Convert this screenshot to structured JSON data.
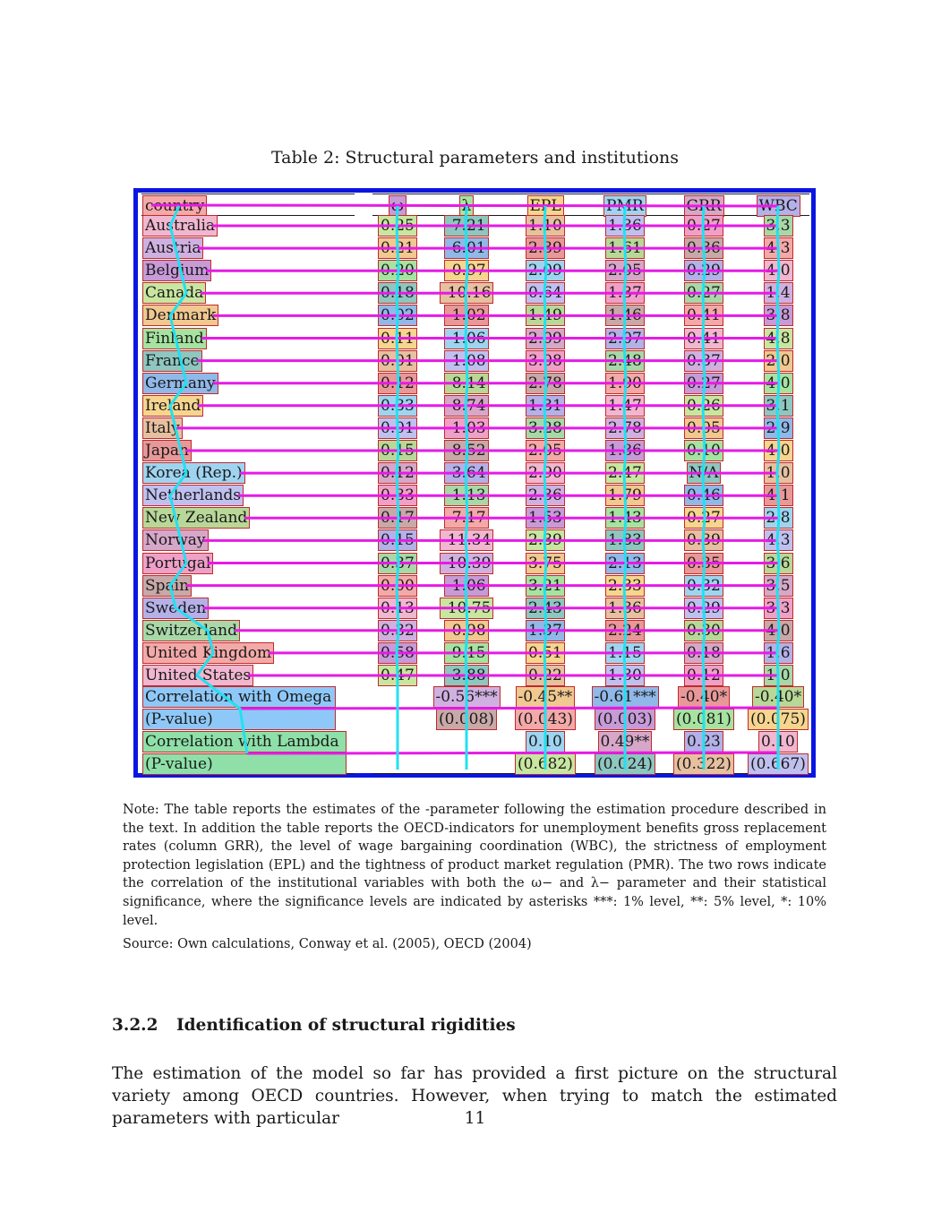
{
  "caption": "Table 2: Structural parameters and institutions",
  "table": {
    "headers": [
      "country",
      "ω",
      "λ",
      "EPL",
      "PMR",
      "GRR",
      "WBC"
    ],
    "rows": [
      {
        "country": "Australia",
        "values": [
          "0.25",
          "-7.21",
          "1.10",
          "1.36",
          "0.27",
          "3.3"
        ]
      },
      {
        "country": "Austria",
        "values": [
          "0.21",
          "-6.01",
          "2.39",
          "1.61",
          "0.36",
          "4.3"
        ]
      },
      {
        "country": "Belgium",
        "values": [
          "0.20",
          "-0.97",
          "2.09",
          "2.05",
          "0.29",
          "4.0"
        ]
      },
      {
        "country": "Canada",
        "values": [
          "0.18",
          "-10.16",
          "0.64",
          "1.37",
          "0.27",
          "1.4"
        ]
      },
      {
        "country": "Denmark",
        "values": [
          "0.02",
          "-1.02",
          "1.49",
          "1.46",
          "0.41",
          "3.8"
        ]
      },
      {
        "country": "Finland",
        "values": [
          "0.11",
          "-1.06",
          "2.09",
          "2.07",
          "0.41",
          "4.8"
        ]
      },
      {
        "country": "France",
        "values": [
          "0.01",
          "-1.08",
          "3.08",
          "2.48",
          "0.37",
          "2.0"
        ]
      },
      {
        "country": "Germany",
        "values": [
          "0.12",
          "-8.14",
          "2.78",
          "1.90",
          "0.27",
          "4.0"
        ]
      },
      {
        "country": "Ireland",
        "values": [
          "0.33",
          "-8.74",
          "1.31",
          "1.47",
          "0.26",
          "3.1"
        ]
      },
      {
        "country": "Italy",
        "values": [
          "0.01",
          "-1.03",
          "3.28",
          "2.78",
          "0.05",
          "2.9"
        ]
      },
      {
        "country": "Japan",
        "values": [
          "0.15",
          "-8.52",
          "2.05",
          "1.86",
          "0.10",
          "4.0"
        ]
      },
      {
        "country": "Korea (Rep.)",
        "values": [
          "0.12",
          "-3.64",
          "2.90",
          "2.47",
          "N/A",
          "1.0"
        ]
      },
      {
        "country": "Netherlands",
        "values": [
          "0.33",
          "-1.13",
          "2.36",
          "1.79",
          "0.46",
          "4.1"
        ]
      },
      {
        "country": "New Zealand",
        "values": [
          "0.17",
          "-7.17",
          "1.53",
          "1.43",
          "0.27",
          "2.8"
        ]
      },
      {
        "country": "Norway",
        "values": [
          "0.15",
          "-11.34",
          "2.39",
          "1.83",
          "0.39",
          "4.3"
        ]
      },
      {
        "country": "Portugal",
        "values": [
          "0.37",
          "-10.39",
          "3.75",
          "2.13",
          "0.35",
          "3.6"
        ]
      },
      {
        "country": "Spain",
        "values": [
          "0.00",
          "-1.06",
          "3.21",
          "2.33",
          "0.32",
          "3.5"
        ]
      },
      {
        "country": "Sweden",
        "values": [
          "0.13",
          "-10.75",
          "2.43",
          "1.36",
          "0.29",
          "3.3"
        ]
      },
      {
        "country": "Switzerland",
        "values": [
          "0.32",
          "-0.98",
          "1.37",
          "2.24",
          "0.30",
          "4.0"
        ]
      },
      {
        "country": "United Kingdom",
        "values": [
          "0.58",
          "-9.15",
          "0.51",
          "1.15",
          "0.18",
          "1.6"
        ]
      },
      {
        "country": "United States",
        "values": [
          "0.47",
          "-3.88",
          "0.22",
          "1.30",
          "0.12",
          "1.0"
        ]
      }
    ],
    "correlation_omega": {
      "label": "Correlation with Omega",
      "pvalue_label": "(P-value)",
      "values": [
        "-0.56***",
        "-0.45**",
        "-0.61***",
        "-0.40*",
        "-0.40*"
      ],
      "pvalues": [
        "(0.008)",
        "(0.043)",
        "(0.003)",
        "(0.081)",
        "(0.075)"
      ]
    },
    "correlation_lambda": {
      "label": "Correlation with Lambda",
      "pvalue_label": "(P-value)",
      "values": [
        "0.10",
        "0.49**",
        "0.23",
        "0.10"
      ],
      "pvalues": [
        "(0.682)",
        "(0.024)",
        "(0.322)",
        "(0.667)"
      ]
    }
  },
  "note": "Note: The table reports the estimates of the -parameter following the estimation procedure described in the text. In addition the table reports the OECD-indicators for unemployment benefits gross replacement rates (column GRR), the level of wage bargaining coordination (WBC), the strictness of employment protection legislation (EPL) and the tightness of product market regulation (PMR). The two rows indicate the correlation of the institutional variables with both the ω− and λ− parameter and their statistical significance, where the significance levels are indicated by asterisks ***: 1% level, **: 5% level, *: 10% level.",
  "source": "Source: Own calculations, Conway et al. (2005), OECD (2004)",
  "section": {
    "number": "3.2.2",
    "title": "Identification of structural rigidities",
    "text": "The estimation of the model so far has provided a first picture on the structural variety among OECD countries. However, when trying to match the estimated parameters with particular"
  },
  "page_number": "11",
  "colors": {
    "frame": "#0a16e0",
    "row_line": "#e61be6",
    "column_line": "#22e0f0",
    "cell_border": "#c02a2a"
  }
}
